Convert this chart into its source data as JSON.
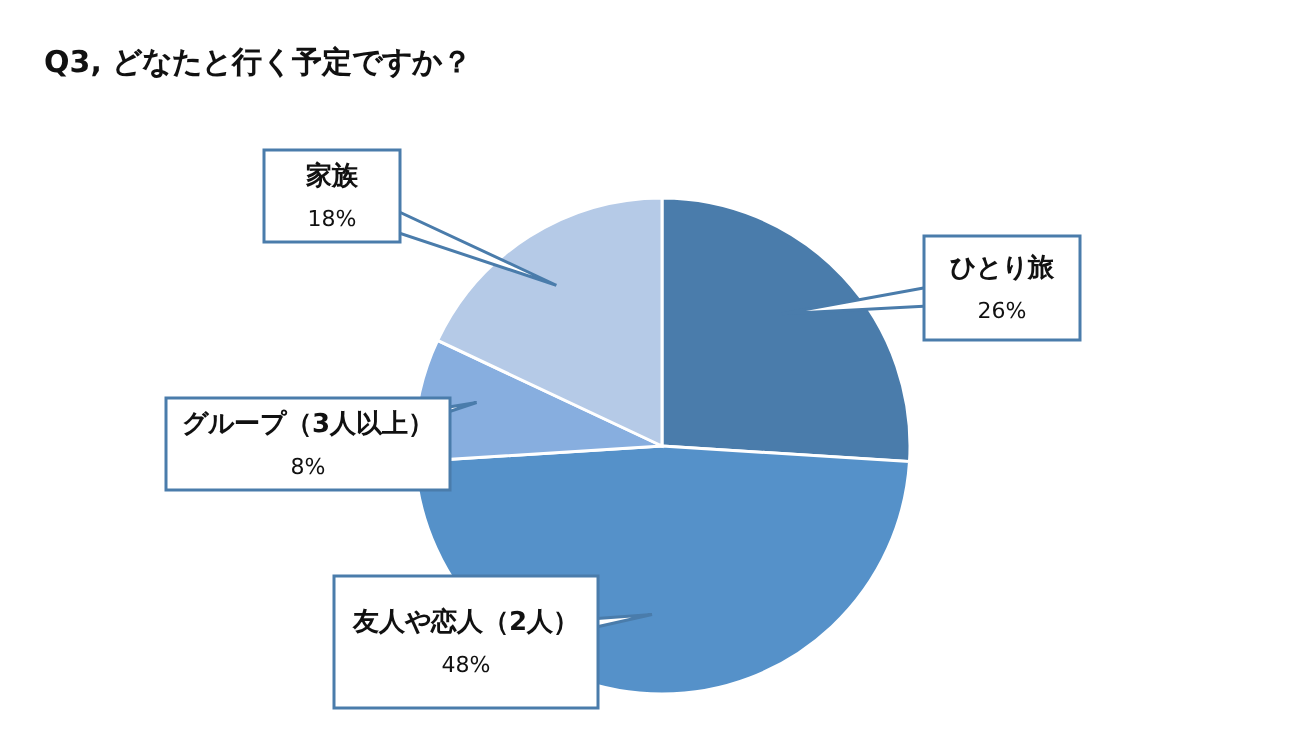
{
  "chart_data": {
    "type": "pie",
    "title": "Q3, どなたと行く予定ですか？",
    "categories": [
      "ひとり旅",
      "友人や恋人（2人）",
      "グループ（3人以上）",
      "家族"
    ],
    "values": [
      26,
      48,
      8,
      18
    ],
    "value_labels": [
      "26%",
      "48%",
      "8%",
      "18%"
    ],
    "colors": [
      "#4a7cab",
      "#5591c9",
      "#87aedf",
      "#b5cae7"
    ],
    "legend": false
  }
}
